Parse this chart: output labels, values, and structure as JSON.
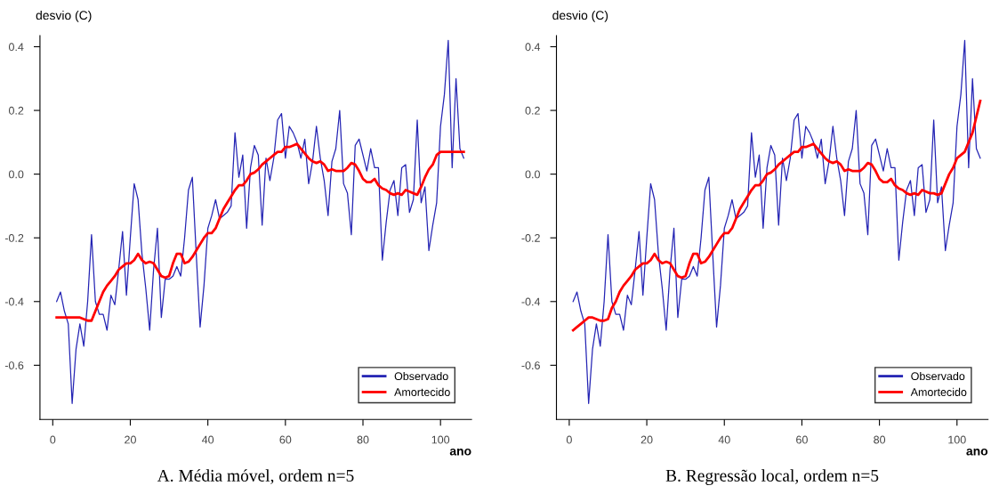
{
  "chart_data": [
    {
      "type": "line",
      "title": "A. Média móvel, ordem n=5",
      "xlabel": "ano",
      "ylabel": "desvio (C)",
      "xlim": [
        -3.3,
        108
      ],
      "ylim": [
        -0.77,
        0.435
      ],
      "xticks": [
        0,
        20,
        40,
        60,
        80,
        100
      ],
      "yticks": [
        -0.6,
        -0.4,
        -0.2,
        {
          "value": 0,
          "label": "0.0"
        },
        0.2,
        0.4
      ],
      "legend": "bottom right",
      "grid": false,
      "x": [
        1,
        2,
        3,
        4,
        5,
        6,
        7,
        8,
        9,
        10,
        11,
        12,
        13,
        14,
        15,
        16,
        17,
        18,
        19,
        20,
        21,
        22,
        23,
        24,
        25,
        26,
        27,
        28,
        29,
        30,
        31,
        32,
        33,
        34,
        35,
        36,
        37,
        38,
        39,
        40,
        41,
        42,
        43,
        44,
        45,
        46,
        47,
        48,
        49,
        50,
        51,
        52,
        53,
        54,
        55,
        56,
        57,
        58,
        59,
        60,
        61,
        62,
        63,
        64,
        65,
        66,
        67,
        68,
        69,
        70,
        71,
        72,
        73,
        74,
        75,
        76,
        77,
        78,
        79,
        80,
        81,
        82,
        83,
        84,
        85,
        86,
        87,
        88,
        89,
        90,
        91,
        92,
        93,
        94,
        95,
        96,
        97,
        98,
        99,
        100,
        101,
        102,
        103,
        104,
        105,
        106
      ],
      "series": [
        {
          "name": "Observado",
          "color": "#2424b4",
          "values": [
            -0.4,
            -0.37,
            -0.43,
            -0.47,
            -0.72,
            -0.55,
            -0.47,
            -0.54,
            -0.4,
            -0.19,
            -0.4,
            -0.44,
            -0.44,
            -0.49,
            -0.38,
            -0.41,
            -0.3,
            -0.18,
            -0.38,
            -0.2,
            -0.03,
            -0.08,
            -0.25,
            -0.36,
            -0.49,
            -0.3,
            -0.17,
            -0.45,
            -0.33,
            -0.33,
            -0.32,
            -0.29,
            -0.32,
            -0.2,
            -0.05,
            -0.01,
            -0.25,
            -0.48,
            -0.35,
            -0.17,
            -0.13,
            -0.08,
            -0.14,
            -0.13,
            -0.12,
            -0.1,
            0.13,
            -0.01,
            0.06,
            -0.17,
            0.02,
            0.09,
            0.06,
            -0.16,
            0.05,
            -0.02,
            0.05,
            0.17,
            0.19,
            0.05,
            0.15,
            0.13,
            0.1,
            0.05,
            0.11,
            -0.03,
            0.04,
            0.15,
            0.05,
            -0.02,
            -0.13,
            0.04,
            0.08,
            0.2,
            -0.03,
            -0.06,
            -0.19,
            0.09,
            0.11,
            0.06,
            0.01,
            0.08,
            0.02,
            0.02,
            -0.27,
            -0.15,
            -0.05,
            -0.02,
            -0.13,
            0.02,
            0.03,
            -0.12,
            -0.08,
            0.17,
            -0.09,
            -0.04,
            -0.24,
            -0.16,
            -0.09,
            0.15,
            0.25,
            0.42,
            0.02,
            0.3,
            0.08,
            0.05
          ]
        },
        {
          "name": "Amortecido",
          "color": "#ff0000",
          "values": [
            -0.45,
            -0.45,
            -0.45,
            -0.45,
            -0.45,
            -0.45,
            -0.45,
            -0.455,
            -0.46,
            -0.46,
            -0.43,
            -0.4,
            -0.37,
            -0.35,
            -0.335,
            -0.32,
            -0.3,
            -0.29,
            -0.28,
            -0.28,
            -0.27,
            -0.25,
            -0.27,
            -0.28,
            -0.275,
            -0.28,
            -0.3,
            -0.32,
            -0.325,
            -0.32,
            -0.28,
            -0.25,
            -0.25,
            -0.28,
            -0.275,
            -0.26,
            -0.24,
            -0.22,
            -0.2,
            -0.185,
            -0.185,
            -0.17,
            -0.14,
            -0.11,
            -0.09,
            -0.07,
            -0.05,
            -0.035,
            -0.035,
            -0.02,
            0.0,
            0.005,
            0.015,
            0.03,
            0.04,
            0.05,
            0.06,
            0.07,
            0.07,
            0.085,
            0.085,
            0.09,
            0.095,
            0.08,
            0.065,
            0.05,
            0.04,
            0.035,
            0.04,
            0.03,
            0.01,
            0.015,
            0.01,
            0.01,
            0.01,
            0.02,
            0.035,
            0.03,
            0.01,
            -0.015,
            -0.025,
            -0.025,
            -0.015,
            -0.035,
            -0.045,
            -0.05,
            -0.06,
            -0.065,
            -0.06,
            -0.065,
            -0.05,
            -0.055,
            -0.06,
            -0.065,
            -0.04,
            -0.01,
            0.015,
            0.03,
            0.06,
            0.07,
            0.07,
            0.07,
            0.07,
            0.07,
            0.07,
            0.07
          ]
        }
      ]
    },
    {
      "type": "line",
      "title": "B. Regressão local, ordem n=5",
      "xlabel": "ano",
      "ylabel": "desvio (C)",
      "xlim": [
        -3.3,
        108
      ],
      "ylim": [
        -0.77,
        0.435
      ],
      "xticks": [
        0,
        20,
        40,
        60,
        80,
        100
      ],
      "yticks": [
        -0.6,
        -0.4,
        -0.2,
        {
          "value": 0,
          "label": "0.0"
        },
        0.2,
        0.4
      ],
      "legend": "bottom right",
      "grid": false,
      "x": [
        1,
        2,
        3,
        4,
        5,
        6,
        7,
        8,
        9,
        10,
        11,
        12,
        13,
        14,
        15,
        16,
        17,
        18,
        19,
        20,
        21,
        22,
        23,
        24,
        25,
        26,
        27,
        28,
        29,
        30,
        31,
        32,
        33,
        34,
        35,
        36,
        37,
        38,
        39,
        40,
        41,
        42,
        43,
        44,
        45,
        46,
        47,
        48,
        49,
        50,
        51,
        52,
        53,
        54,
        55,
        56,
        57,
        58,
        59,
        60,
        61,
        62,
        63,
        64,
        65,
        66,
        67,
        68,
        69,
        70,
        71,
        72,
        73,
        74,
        75,
        76,
        77,
        78,
        79,
        80,
        81,
        82,
        83,
        84,
        85,
        86,
        87,
        88,
        89,
        90,
        91,
        92,
        93,
        94,
        95,
        96,
        97,
        98,
        99,
        100,
        101,
        102,
        103,
        104,
        105,
        106
      ],
      "series": [
        {
          "name": "Observado",
          "color": "#2424b4",
          "values": [
            -0.4,
            -0.37,
            -0.43,
            -0.47,
            -0.72,
            -0.55,
            -0.47,
            -0.54,
            -0.4,
            -0.19,
            -0.4,
            -0.44,
            -0.44,
            -0.49,
            -0.38,
            -0.41,
            -0.3,
            -0.18,
            -0.38,
            -0.2,
            -0.03,
            -0.08,
            -0.25,
            -0.36,
            -0.49,
            -0.3,
            -0.17,
            -0.45,
            -0.33,
            -0.33,
            -0.32,
            -0.29,
            -0.32,
            -0.2,
            -0.05,
            -0.01,
            -0.25,
            -0.48,
            -0.35,
            -0.17,
            -0.13,
            -0.08,
            -0.14,
            -0.13,
            -0.12,
            -0.1,
            0.13,
            -0.01,
            0.06,
            -0.17,
            0.02,
            0.09,
            0.06,
            -0.16,
            0.05,
            -0.02,
            0.05,
            0.17,
            0.19,
            0.05,
            0.15,
            0.13,
            0.1,
            0.05,
            0.11,
            -0.03,
            0.04,
            0.15,
            0.05,
            -0.02,
            -0.13,
            0.04,
            0.08,
            0.2,
            -0.03,
            -0.06,
            -0.19,
            0.09,
            0.11,
            0.06,
            0.01,
            0.08,
            0.02,
            0.02,
            -0.27,
            -0.15,
            -0.05,
            -0.02,
            -0.13,
            0.02,
            0.03,
            -0.12,
            -0.08,
            0.17,
            -0.09,
            -0.04,
            -0.24,
            -0.16,
            -0.09,
            0.15,
            0.25,
            0.42,
            0.02,
            0.3,
            0.08,
            0.05
          ]
        },
        {
          "name": "Amortecido",
          "color": "#ff0000",
          "values": [
            -0.49,
            -0.48,
            -0.47,
            -0.46,
            -0.45,
            -0.45,
            -0.455,
            -0.46,
            -0.46,
            -0.455,
            -0.42,
            -0.4,
            -0.37,
            -0.35,
            -0.335,
            -0.32,
            -0.3,
            -0.29,
            -0.28,
            -0.28,
            -0.27,
            -0.25,
            -0.27,
            -0.28,
            -0.275,
            -0.28,
            -0.3,
            -0.32,
            -0.325,
            -0.32,
            -0.28,
            -0.25,
            -0.25,
            -0.28,
            -0.275,
            -0.26,
            -0.24,
            -0.22,
            -0.2,
            -0.185,
            -0.185,
            -0.17,
            -0.14,
            -0.11,
            -0.09,
            -0.07,
            -0.05,
            -0.035,
            -0.035,
            -0.02,
            0.0,
            0.005,
            0.015,
            0.03,
            0.04,
            0.05,
            0.06,
            0.07,
            0.07,
            0.085,
            0.085,
            0.09,
            0.095,
            0.08,
            0.065,
            0.05,
            0.04,
            0.035,
            0.04,
            0.03,
            0.01,
            0.015,
            0.01,
            0.01,
            0.01,
            0.02,
            0.035,
            0.03,
            0.01,
            -0.015,
            -0.025,
            -0.025,
            -0.015,
            -0.035,
            -0.045,
            -0.05,
            -0.06,
            -0.065,
            -0.06,
            -0.065,
            -0.05,
            -0.055,
            -0.06,
            -0.06,
            -0.065,
            -0.06,
            -0.03,
            0.0,
            0.02,
            0.05,
            0.06,
            0.07,
            0.1,
            0.13,
            0.18,
            0.23
          ]
        }
      ]
    }
  ]
}
